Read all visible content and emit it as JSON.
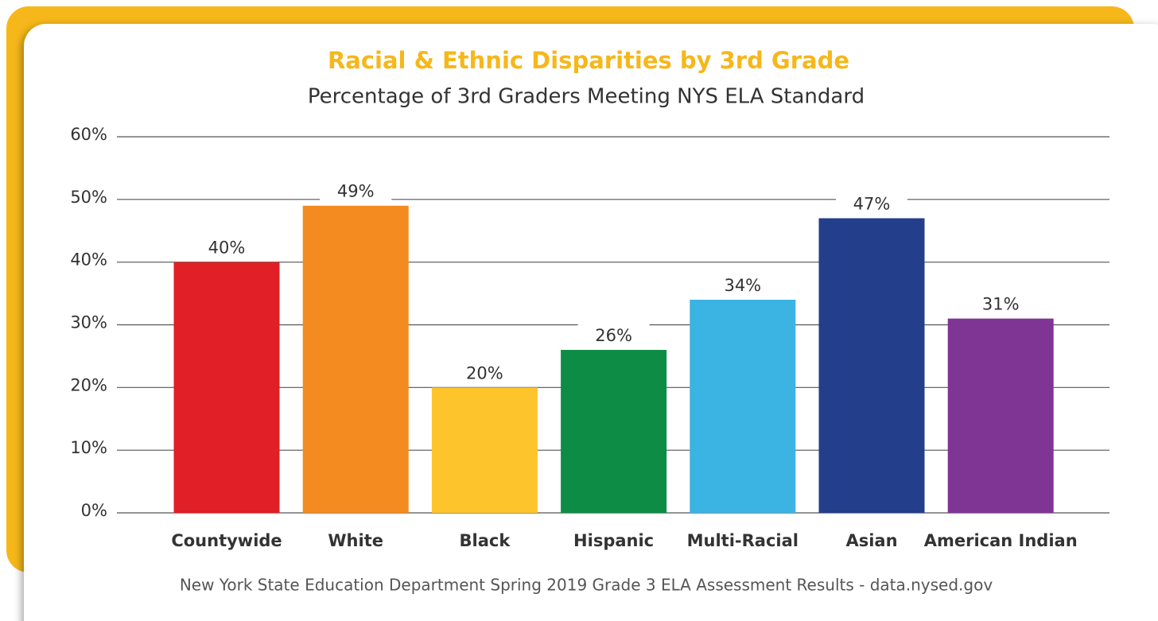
{
  "chart_data": {
    "type": "bar",
    "title": "Racial & Ethnic Disparities by 3rd Grade",
    "subtitle": "Percentage of 3rd Graders Meeting NYS ELA Standard",
    "source": "New York State Education Department Spring 2019 Grade 3 ELA Assessment Results - data.nysed.gov",
    "categories": [
      "Countywide",
      "White",
      "Black",
      "Hispanic",
      "Multi-Racial",
      "Asian",
      "American Indian"
    ],
    "values": [
      40,
      49,
      20,
      26,
      34,
      47,
      31
    ],
    "value_labels": [
      "40%",
      "49%",
      "20%",
      "26%",
      "34%",
      "47%",
      "31%"
    ],
    "colors": [
      "#e01f26",
      "#f38b20",
      "#fdc42b",
      "#0c8c44",
      "#3bb3e3",
      "#233e8b",
      "#7f3593"
    ],
    "ylim": [
      0,
      60
    ],
    "yticks": [
      {
        "value": 0,
        "label": "0%"
      },
      {
        "value": 10,
        "label": "10%"
      },
      {
        "value": 20,
        "label": "20%"
      },
      {
        "value": 30,
        "label": "30%"
      },
      {
        "value": 40,
        "label": "40%"
      },
      {
        "value": 50,
        "label": "50%"
      },
      {
        "value": 60,
        "label": "60%"
      }
    ],
    "grid": true
  }
}
